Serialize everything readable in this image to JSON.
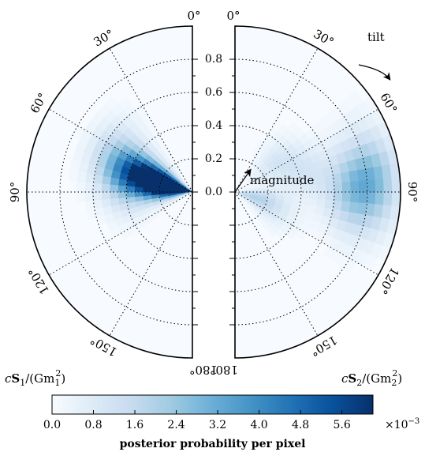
{
  "chart_data": {
    "type": "heatmap",
    "subtype": "polar-half-discs",
    "radial_axis": {
      "ticks": [
        0.0,
        0.2,
        0.4,
        0.6,
        0.8
      ],
      "tick_labels": [
        "0.0",
        "0.2",
        "0.4",
        "0.6",
        "0.8"
      ],
      "range": [
        0,
        1.0
      ],
      "grid_rings": [
        0.2,
        0.4,
        0.6,
        0.8
      ]
    },
    "angular_axis": {
      "ticks_deg": [
        0,
        30,
        60,
        90,
        120,
        150,
        180
      ],
      "tick_labels": [
        "0°",
        "30°",
        "60°",
        "90°",
        "120°",
        "150°",
        "180°"
      ]
    },
    "panels": [
      {
        "side": "left",
        "label": "cS1/(Gm1^2)",
        "label_main": "c",
        "label_bold": "S",
        "label_sub": "1",
        "label_mid": "/(Gm",
        "label_sub2": "1",
        "label_sup": "2",
        "label_end": ")",
        "density_peaks": [
          {
            "magnitude": 0.18,
            "tilt_deg": 75,
            "value": 5.9
          },
          {
            "magnitude": 0.09,
            "tilt_deg": 85,
            "value": 4.6
          },
          {
            "magnitude": 0.32,
            "tilt_deg": 72,
            "value": 4.0
          },
          {
            "magnitude": 0.06,
            "tilt_deg": 72,
            "value": 3.5
          },
          {
            "magnitude": 0.45,
            "tilt_deg": 73,
            "value": 2.0
          },
          {
            "magnitude": 0.55,
            "tilt_deg": 60,
            "value": 0.9
          },
          {
            "magnitude": 0.38,
            "tilt_deg": 100,
            "value": 0.7
          }
        ]
      },
      {
        "side": "right",
        "label": "cS2/(Gm2^2)",
        "label_main": "c",
        "label_bold": "S",
        "label_sub": "2",
        "label_mid": "/(Gm",
        "label_sub2": "2",
        "label_sup": "2",
        "label_end": ")",
        "density_peaks": [
          {
            "magnitude": 0.85,
            "tilt_deg": 85,
            "value": 2.3
          },
          {
            "magnitude": 0.7,
            "tilt_deg": 90,
            "value": 1.9
          },
          {
            "magnitude": 0.12,
            "tilt_deg": 105,
            "value": 1.8
          },
          {
            "magnitude": 0.3,
            "tilt_deg": 55,
            "value": 1.0
          },
          {
            "magnitude": 0.45,
            "tilt_deg": 75,
            "value": 0.9
          },
          {
            "magnitude": 0.28,
            "tilt_deg": 115,
            "value": 0.6
          }
        ]
      }
    ],
    "annotations": {
      "tilt": "tilt",
      "magnitude": "magnitude"
    },
    "colorbar": {
      "label": "posterior probability per pixel",
      "tick_labels": [
        "0.0",
        "0.8",
        "1.6",
        "2.4",
        "3.2",
        "4.0",
        "4.8",
        "5.6"
      ],
      "ticks": [
        0.0,
        0.8,
        1.6,
        2.4,
        3.2,
        4.0,
        4.8,
        5.6
      ],
      "range": [
        0,
        6.2
      ],
      "multiplier": "×10",
      "multiplier_exp": "−3",
      "colormap": "Blues",
      "colors": [
        "#f7fbff",
        "#deebf7",
        "#c6dbef",
        "#9ecae1",
        "#6baed6",
        "#4292c6",
        "#2171b5",
        "#08519c",
        "#08306b"
      ]
    }
  }
}
